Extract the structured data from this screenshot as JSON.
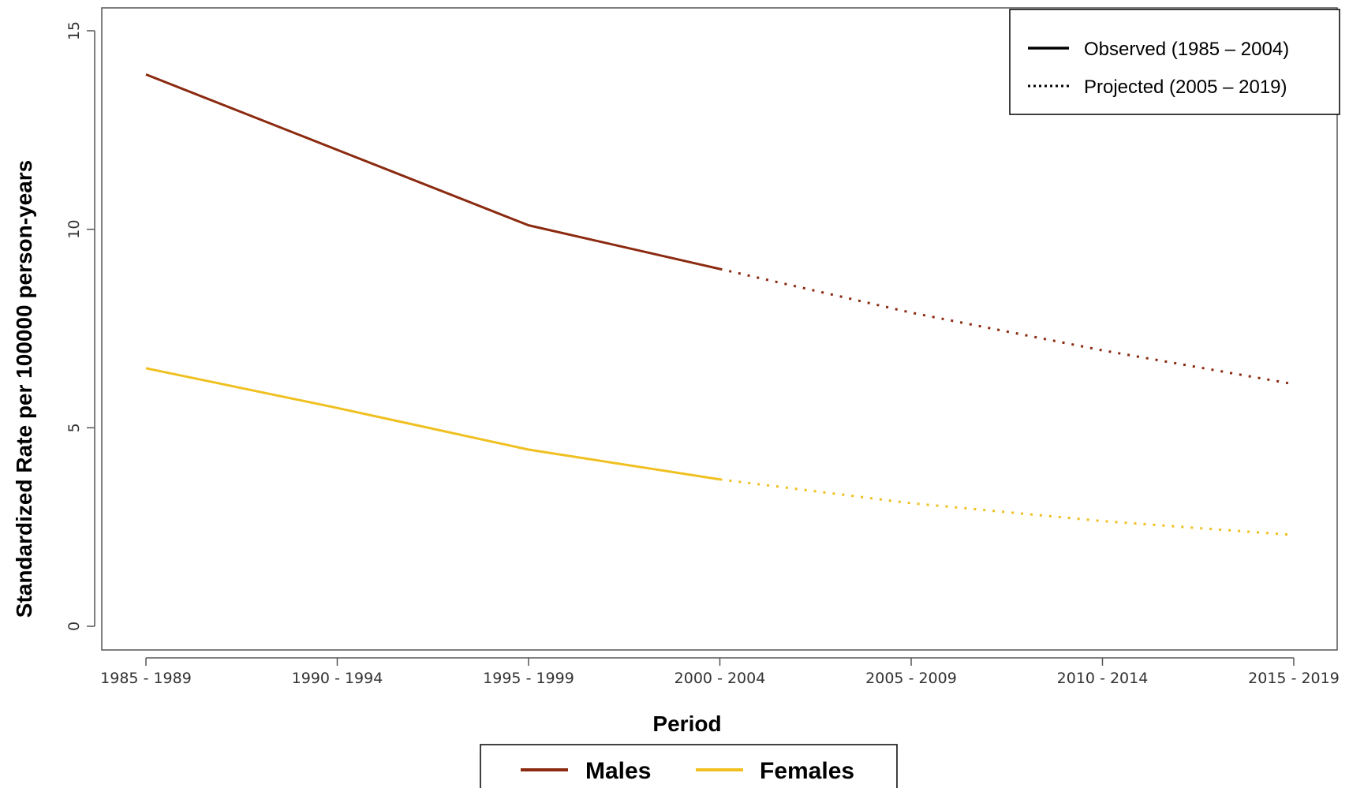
{
  "chart_data": {
    "type": "line",
    "title": "",
    "xlabel": "Period",
    "ylabel": "Standardized Rate per 100000 person-years",
    "categories": [
      "1985 - 1989",
      "1990 - 1994",
      "1995 - 1999",
      "2000 - 2004",
      "2005 - 2009",
      "2010 - 2014",
      "2015 - 2019"
    ],
    "ylim": [
      0,
      15
    ],
    "yticks": [
      "0",
      "5",
      "10",
      "15"
    ],
    "grid": false,
    "observed_through_index": 3,
    "series": [
      {
        "name": "Males",
        "color": "#8B2A10",
        "values": [
          13.9,
          12.0,
          10.1,
          9.0,
          7.9,
          6.95,
          6.1
        ]
      },
      {
        "name": "Females",
        "color": "#F0C020",
        "values": [
          6.5,
          5.5,
          4.45,
          3.7,
          3.1,
          2.65,
          2.3
        ]
      }
    ],
    "linestyle_legend": {
      "placement": "top-right",
      "entries": [
        {
          "label": "Observed (1985 – 2004)",
          "style": "solid"
        },
        {
          "label": "Projected (2005 – 2019)",
          "style": "dotted"
        }
      ]
    },
    "series_legend": {
      "placement": "bottom-center",
      "entries": [
        {
          "label": "Males",
          "color": "#8B2A10"
        },
        {
          "label": "Females",
          "color": "#F0C020"
        }
      ]
    }
  }
}
